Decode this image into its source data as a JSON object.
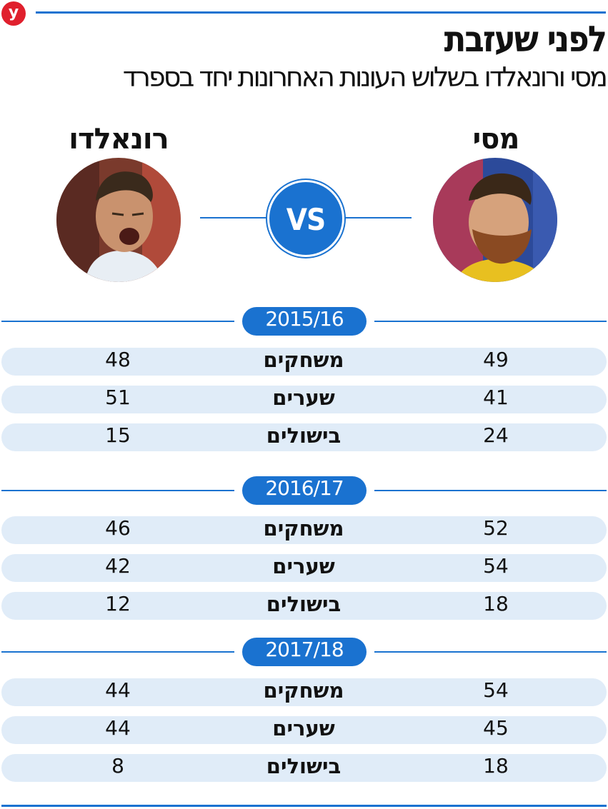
{
  "header": {
    "logo": "y",
    "title": "לפני שעזבת",
    "subtitle": "מסי ורונאלדו בשלוש העונות האחרונות יחד בספרד"
  },
  "players": {
    "left": {
      "name": "רונאלדו",
      "photo_icon": "ronaldo-photo"
    },
    "right": {
      "name": "מסי",
      "photo_icon": "messi-photo"
    },
    "vs": "VS"
  },
  "seasons": [
    {
      "label": "2015/16",
      "rows": [
        {
          "stat": "משחקים",
          "ronaldo": "48",
          "messi": "49"
        },
        {
          "stat": "שערים",
          "ronaldo": "51",
          "messi": "41"
        },
        {
          "stat": "בישולים",
          "ronaldo": "15",
          "messi": "24"
        }
      ]
    },
    {
      "label": "2016/17",
      "rows": [
        {
          "stat": "משחקים",
          "ronaldo": "46",
          "messi": "52"
        },
        {
          "stat": "שערים",
          "ronaldo": "42",
          "messi": "54"
        },
        {
          "stat": "בישולים",
          "ronaldo": "12",
          "messi": "18"
        }
      ]
    },
    {
      "label": "2017/18",
      "rows": [
        {
          "stat": "משחקים",
          "ronaldo": "44",
          "messi": "54"
        },
        {
          "stat": "שערים",
          "ronaldo": "44",
          "messi": "45"
        },
        {
          "stat": "בישולים",
          "ronaldo": "8",
          "messi": "18"
        }
      ]
    }
  ],
  "colors": {
    "accent": "#1a72d0",
    "row_bg": "#e0ecf8",
    "logo_red": "#e0202d"
  }
}
